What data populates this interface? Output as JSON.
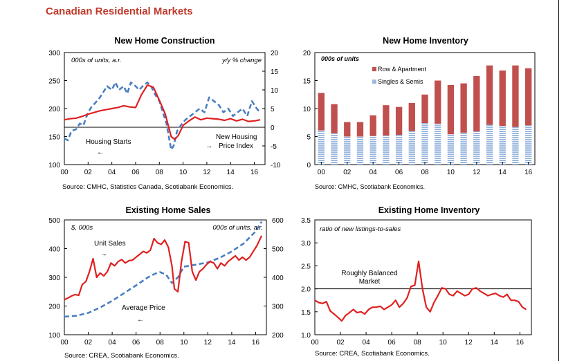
{
  "page": {
    "title": "Canadian Residential Markets"
  },
  "chart_data": [
    {
      "id": "new-home-construction",
      "type": "line",
      "title": "New Home Construction",
      "source": "Source: CMHC, Statistics Canada, Scotiabank Economics.",
      "y_left": {
        "note": "000s of units, a.r.",
        "range": [
          100,
          300
        ],
        "ticks": [
          "100",
          "150",
          "200",
          "250",
          "300"
        ]
      },
      "y_right": {
        "note": "y/y % change",
        "range": [
          -10,
          20
        ],
        "ticks": [
          "-10",
          "-5",
          "0",
          "5",
          "10",
          "15",
          "20"
        ]
      },
      "x_ticks": [
        "00",
        "02",
        "04",
        "06",
        "08",
        "10",
        "12",
        "14",
        "16"
      ],
      "x_range": [
        0,
        16.9
      ],
      "annotations": [
        {
          "text": "Housing Starts",
          "arrow": "←"
        },
        {
          "text": "New Housing",
          "arrow": "→"
        },
        {
          "text": "Price Index"
        }
      ],
      "series": [
        {
          "axis": "left",
          "style": "solid",
          "color": "#e02020",
          "x": [
            0,
            0.5,
            1,
            1.5,
            2,
            2.5,
            3,
            3.5,
            4,
            4.5,
            5,
            5.5,
            6,
            6.5,
            7,
            7.5,
            8,
            8.5,
            9,
            9.3,
            9.6,
            10,
            10.5,
            11,
            11.5,
            12,
            12.5,
            13,
            13.5,
            14,
            14.5,
            15,
            15.5,
            16,
            16.5
          ],
          "y": [
            180,
            182,
            183,
            186,
            190,
            193,
            196,
            198,
            200,
            202,
            205,
            203,
            202,
            225,
            242,
            238,
            215,
            190,
            150,
            145,
            152,
            170,
            178,
            185,
            180,
            183,
            182,
            181,
            179,
            182,
            178,
            181,
            177,
            178,
            180
          ]
        },
        {
          "axis": "right",
          "style": "dashed",
          "color": "#4a7fc1",
          "x": [
            0,
            0.3,
            0.6,
            1,
            1.3,
            1.6,
            2,
            2.3,
            2.6,
            3,
            3.3,
            3.6,
            4,
            4.3,
            4.6,
            5,
            5.3,
            5.6,
            6,
            6.3,
            6.6,
            7,
            7.3,
            7.6,
            8,
            8.3,
            8.6,
            9,
            9.2,
            9.5,
            9.8,
            10.2,
            10.6,
            11,
            11.4,
            11.8,
            12.2,
            12.6,
            13,
            13.4,
            13.8,
            14.2,
            14.6,
            15,
            15.4,
            15.8,
            16.2,
            16.5
          ],
          "y": [
            -3,
            -3.5,
            -1,
            -0.5,
            1,
            0.5,
            4,
            5.5,
            6.5,
            8,
            9.5,
            11,
            10,
            12,
            10,
            11,
            9,
            12,
            11,
            10,
            11,
            12,
            11,
            9,
            7,
            4,
            1,
            -6,
            -5,
            -1,
            0.5,
            2,
            3,
            4,
            5,
            4,
            8,
            7,
            6,
            4,
            5,
            3,
            4,
            5,
            3,
            7,
            5,
            4
          ]
        }
      ]
    },
    {
      "id": "new-home-inventory",
      "type": "bar",
      "title": "New Home Inventory",
      "source": "Source: CMHC, Scotiabank Economics.",
      "y": {
        "note": "000s of units",
        "range": [
          0,
          20
        ],
        "ticks": [
          "0",
          "5",
          "10",
          "15",
          "20"
        ]
      },
      "x_ticks": [
        "00",
        "02",
        "04",
        "06",
        "08",
        "10",
        "12",
        "14",
        "16"
      ],
      "categories": [
        "00",
        "01",
        "02",
        "03",
        "04",
        "05",
        "06",
        "07",
        "08",
        "09",
        "10",
        "11",
        "12",
        "13",
        "14",
        "15",
        "16"
      ],
      "series": [
        {
          "name": "Singles & Semis",
          "color": "#9db9df",
          "values": [
            6.1,
            5.6,
            5.0,
            5.0,
            5.1,
            5.2,
            5.3,
            6.0,
            7.4,
            7.3,
            5.4,
            5.7,
            5.9,
            7.1,
            6.9,
            6.7,
            7.0
          ]
        },
        {
          "name": "Row & Apartment",
          "color": "#c0504d",
          "values": [
            6.7,
            5.2,
            2.6,
            2.6,
            3.7,
            5.4,
            5.0,
            5.0,
            5.1,
            7.7,
            8.8,
            8.8,
            9.9,
            10.6,
            9.9,
            11.0,
            10.2
          ]
        }
      ],
      "legend_order": [
        "Row & Apartment",
        "Singles & Semis"
      ]
    },
    {
      "id": "existing-home-sales",
      "type": "line",
      "title": "Existing Home Sales",
      "source": "Source: CREA, Scotiabank Economics.",
      "y_left": {
        "note": "$, 000s",
        "range": [
          100,
          500
        ],
        "ticks": [
          "100",
          "200",
          "300",
          "400",
          "500"
        ]
      },
      "y_right": {
        "note": "000s of units, a.r.",
        "range": [
          200,
          600
        ],
        "ticks": [
          "200",
          "300",
          "400",
          "500",
          "600"
        ]
      },
      "x_ticks": [
        "00",
        "02",
        "04",
        "06",
        "08",
        "10",
        "12",
        "14",
        "16"
      ],
      "x_range": [
        0,
        16.9
      ],
      "annotations": [
        {
          "text": "Unit Sales",
          "arrow": "→"
        },
        {
          "text": "Average Price",
          "arrow": "←"
        }
      ],
      "series": [
        {
          "axis": "right",
          "style": "solid",
          "color": "#e02020",
          "x": [
            0,
            0.3,
            0.6,
            0.9,
            1.2,
            1.5,
            1.8,
            2.1,
            2.4,
            2.7,
            3,
            3.3,
            3.6,
            3.9,
            4.2,
            4.5,
            4.8,
            5.1,
            5.4,
            5.7,
            6,
            6.3,
            6.6,
            6.9,
            7.2,
            7.5,
            7.8,
            8.1,
            8.4,
            8.7,
            9,
            9.2,
            9.5,
            9.8,
            10.1,
            10.4,
            10.7,
            11,
            11.3,
            11.6,
            11.9,
            12.2,
            12.5,
            12.8,
            13.1,
            13.4,
            13.7,
            14,
            14.3,
            14.6,
            14.9,
            15.2,
            15.5,
            15.8,
            16.1,
            16.5
          ],
          "y": [
            322,
            328,
            335,
            340,
            337,
            375,
            385,
            420,
            465,
            400,
            415,
            405,
            420,
            450,
            440,
            455,
            462,
            450,
            458,
            460,
            470,
            480,
            490,
            485,
            495,
            535,
            520,
            515,
            530,
            505,
            440,
            360,
            350,
            455,
            525,
            520,
            420,
            390,
            420,
            430,
            445,
            455,
            450,
            430,
            450,
            440,
            455,
            465,
            475,
            460,
            470,
            460,
            470,
            490,
            510,
            545
          ]
        },
        {
          "axis": "left",
          "style": "dashed",
          "color": "#4a7fc1",
          "x": [
            0,
            1,
            2,
            3,
            4,
            5,
            6,
            7,
            7.6,
            8,
            8.5,
            9,
            9.5,
            10,
            11,
            12,
            13,
            14,
            15,
            16,
            16.5
          ],
          "y": [
            163,
            166,
            176,
            195,
            218,
            245,
            272,
            300,
            313,
            318,
            310,
            280,
            300,
            337,
            344,
            352,
            368,
            390,
            418,
            460,
            494
          ]
        }
      ]
    },
    {
      "id": "existing-home-inventory",
      "type": "line",
      "title": "Existing Home Inventory",
      "source": "Source: CREA, Scotiabank Economics.",
      "y": {
        "note": "ratio of new listings-to-sales",
        "range": [
          1.0,
          3.5
        ],
        "ticks": [
          "1.0",
          "1.5",
          "2.0",
          "2.5",
          "3.0",
          "3.5"
        ]
      },
      "x_ticks": [
        "00",
        "02",
        "04",
        "06",
        "08",
        "10",
        "12",
        "14",
        "16"
      ],
      "x_range": [
        0,
        16.9
      ],
      "reference_line": {
        "y": 2.0,
        "label": [
          "Roughly Balanced",
          "Market"
        ]
      },
      "series": [
        {
          "style": "solid",
          "color": "#e02020",
          "x": [
            0,
            0.3,
            0.6,
            0.9,
            1.2,
            1.5,
            1.8,
            2.1,
            2.4,
            2.7,
            3,
            3.3,
            3.6,
            3.9,
            4.2,
            4.5,
            4.8,
            5.1,
            5.4,
            5.7,
            6,
            6.3,
            6.6,
            6.9,
            7.2,
            7.5,
            7.8,
            8.1,
            8.4,
            8.7,
            9,
            9.3,
            9.6,
            9.9,
            10.2,
            10.5,
            10.8,
            11.1,
            11.4,
            11.7,
            12,
            12.3,
            12.6,
            12.9,
            13.2,
            13.5,
            13.8,
            14.1,
            14.4,
            14.7,
            15,
            15.3,
            15.6,
            15.9,
            16.2,
            16.5
          ],
          "y": [
            1.75,
            1.7,
            1.68,
            1.72,
            1.52,
            1.45,
            1.38,
            1.3,
            1.42,
            1.48,
            1.55,
            1.48,
            1.5,
            1.45,
            1.55,
            1.6,
            1.6,
            1.62,
            1.55,
            1.6,
            1.65,
            1.75,
            1.6,
            1.68,
            1.8,
            2.05,
            2.08,
            2.6,
            2.0,
            1.6,
            1.5,
            1.7,
            1.85,
            2.02,
            2.0,
            1.88,
            1.85,
            1.95,
            1.9,
            1.85,
            1.88,
            2.0,
            2.02,
            1.95,
            1.9,
            1.85,
            1.88,
            1.9,
            1.85,
            1.82,
            1.88,
            1.75,
            1.75,
            1.72,
            1.6,
            1.55
          ]
        }
      ]
    }
  ]
}
